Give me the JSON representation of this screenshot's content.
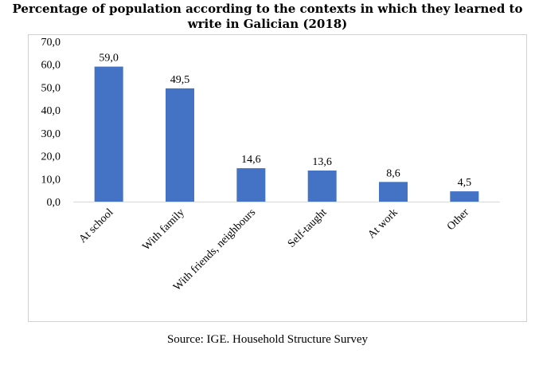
{
  "title": "Percentage of population according to the contexts in which they learned to write in Galician (2018)",
  "source": "Source: IGE. Household Structure Survey",
  "chart_data": {
    "type": "bar",
    "title": "Percentage of population according to the contexts in which they learned to write in Galician (2018)",
    "categories": [
      "At school",
      "With family",
      "With friends, neighbours",
      "Self-taught",
      "At work",
      "Other"
    ],
    "values": [
      59.0,
      49.5,
      14.6,
      13.6,
      8.6,
      4.5
    ],
    "value_labels": [
      "59,0",
      "49,5",
      "14,6",
      "13,6",
      "8,6",
      "4,5"
    ],
    "ylim": [
      0,
      70
    ],
    "yticks": [
      "0,0",
      "10,0",
      "20,0",
      "30,0",
      "40,0",
      "50,0",
      "60,0",
      "70,0"
    ],
    "bar_color": "#4472c4",
    "grid": false,
    "legend": "none",
    "xlabel": "",
    "ylabel": ""
  }
}
